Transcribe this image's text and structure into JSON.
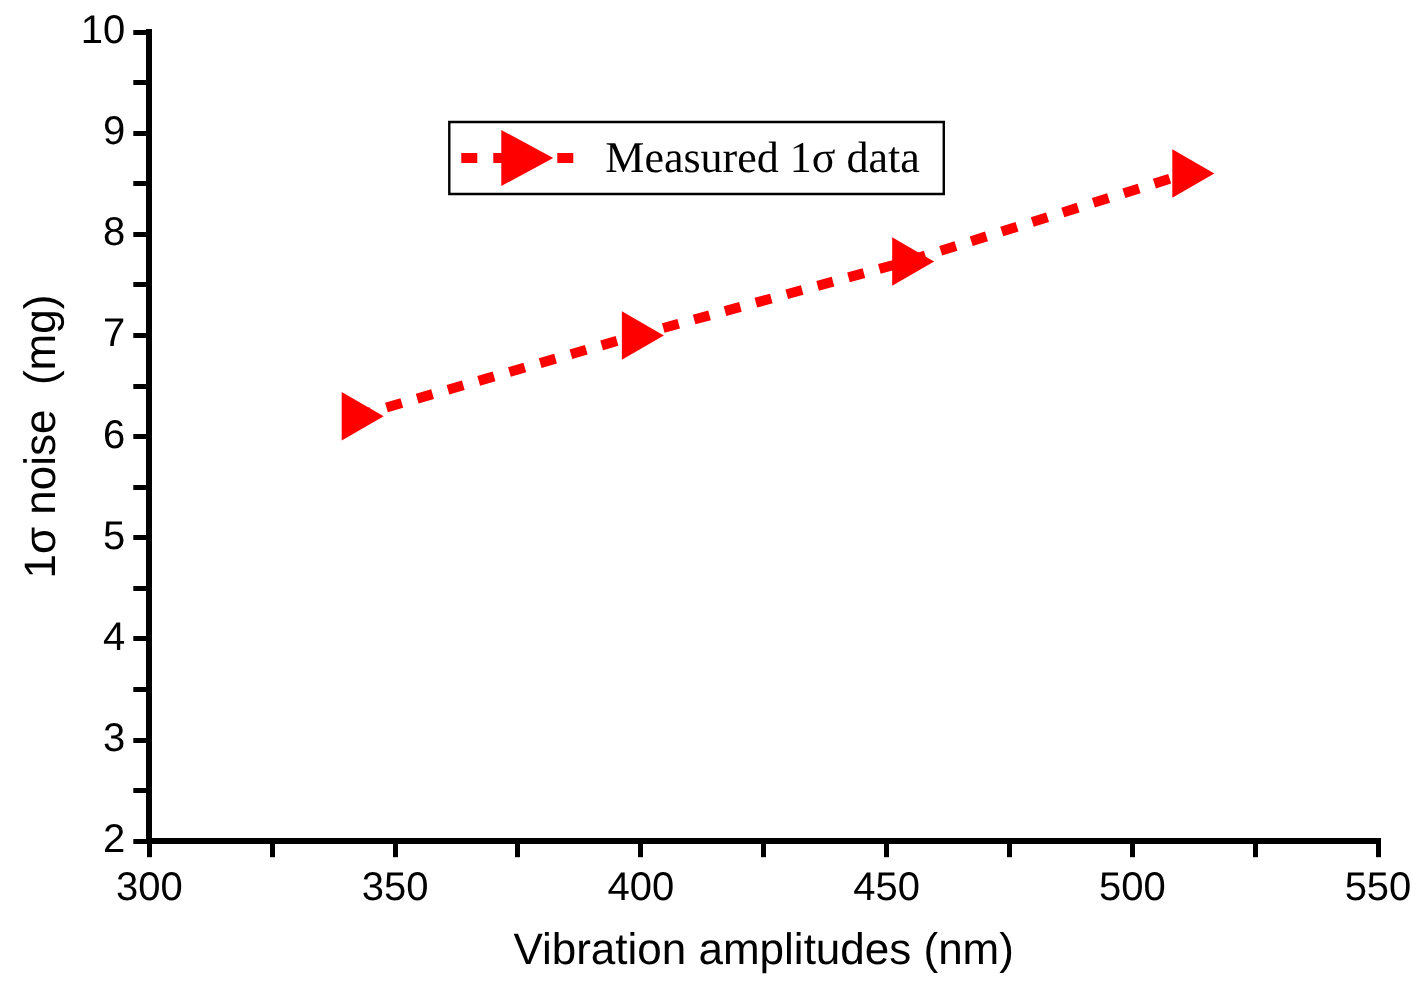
{
  "chart_data": {
    "type": "line",
    "xlabel": "Vibration amplitudes (nm)",
    "ylabel": "1σ noise  (mg)",
    "x": [
      342,
      399,
      454,
      511
    ],
    "series": [
      {
        "name": "Measured 1σ data",
        "color": "#ff0000",
        "values": [
          6.2,
          7.0,
          7.73,
          8.6
        ]
      }
    ],
    "xlim": [
      300,
      550
    ],
    "xticks": [
      300,
      {
        "value": 325,
        "label": null
      },
      350,
      {
        "value": 375,
        "label": null
      },
      400,
      {
        "value": 425,
        "label": null
      },
      450,
      {
        "value": 475,
        "label": null
      },
      500,
      {
        "value": 525,
        "label": null
      },
      550
    ],
    "ylim": [
      2,
      10
    ],
    "yticks": [
      2,
      {
        "value": 2.5,
        "label": null
      },
      3,
      {
        "value": 3.5,
        "label": null
      },
      4,
      {
        "value": 4.5,
        "label": null
      },
      5,
      {
        "value": 5.5,
        "label": null
      },
      6,
      {
        "value": 6.5,
        "label": null
      },
      7,
      {
        "value": 7.5,
        "label": null
      },
      8,
      {
        "value": 8.5,
        "label": null
      },
      9,
      {
        "value": 9.5,
        "label": null
      },
      10
    ],
    "grid": false,
    "legend": "top",
    "marker": "triangle",
    "line_style": "dotted"
  }
}
